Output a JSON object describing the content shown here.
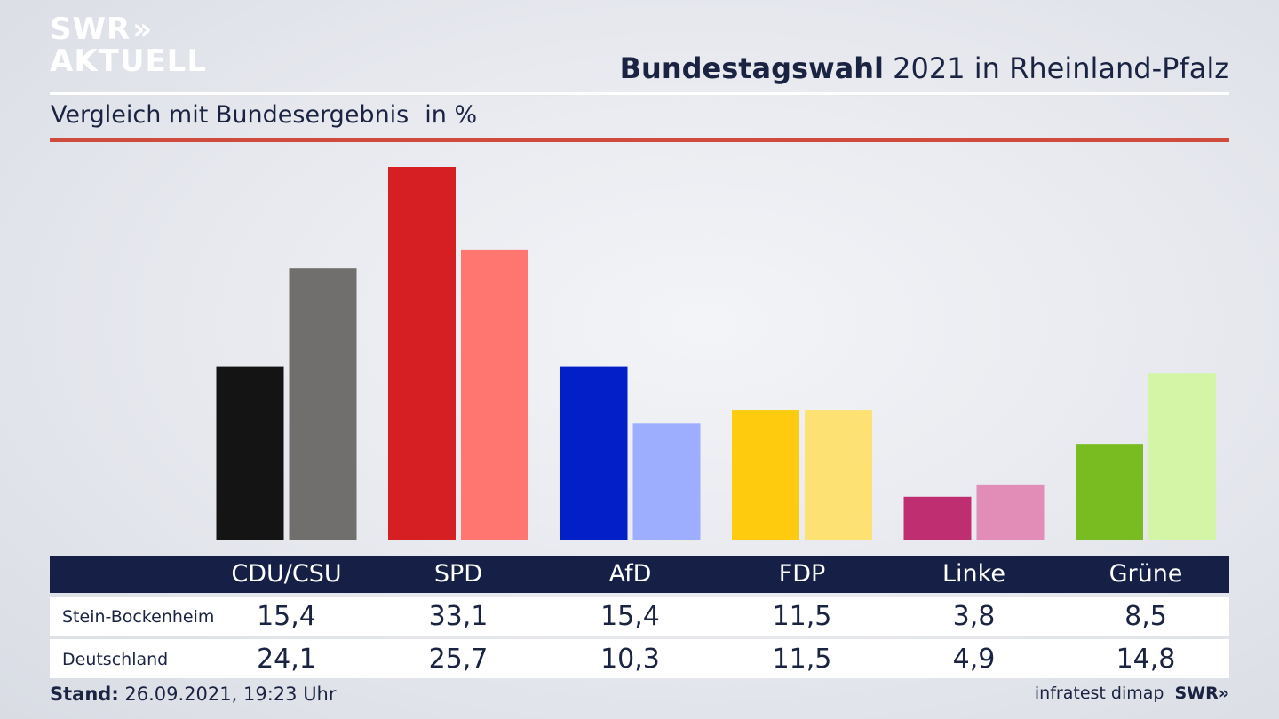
{
  "logo": {
    "line1": "SWR",
    "line1_mark": "»",
    "line2": "AKTUELL"
  },
  "header": {
    "title_bold": "Bundestagswahl",
    "title_rest": "2021 in Rheinland-Pfalz"
  },
  "subheader": {
    "text": "Vergleich mit Bundesergebnis",
    "unit": "in %"
  },
  "chart_data": {
    "type": "bar",
    "title": "Bundestagswahl 2021 in Rheinland-Pfalz",
    "subtitle": "Vergleich mit Bundesergebnis in %",
    "categories": [
      "CDU/CSU",
      "SPD",
      "AfD",
      "FDP",
      "Linke",
      "Grüne"
    ],
    "series": [
      {
        "name": "Stein-Bockenheim",
        "values": [
          15.4,
          33.1,
          15.4,
          11.5,
          3.8,
          8.5
        ],
        "display": [
          "15,4",
          "33,1",
          "15,4",
          "11,5",
          "3,8",
          "8,5"
        ]
      },
      {
        "name": "Deutschland",
        "values": [
          24.1,
          25.7,
          10.3,
          11.5,
          4.9,
          14.8
        ],
        "display": [
          "24,1",
          "25,7",
          "10,3",
          "11,5",
          "4,9",
          "14,8"
        ]
      }
    ],
    "colors_local": [
      "#141414",
      "#d61f22",
      "#0320c8",
      "#fecb0e",
      "#c02e72",
      "#79bc21"
    ],
    "colors_national": [
      "#716f6d",
      "#ff7670",
      "#9dadff",
      "#fde173",
      "#e18db8",
      "#d3f5a5"
    ],
    "ylim": [
      0,
      33.1
    ],
    "grid": false,
    "legend": "table below chart"
  },
  "footer": {
    "stand_label": "Stand:",
    "stand_value": "26.09.2021, 19:23 Uhr",
    "source": "infratest dimap",
    "brand": "SWR»"
  }
}
